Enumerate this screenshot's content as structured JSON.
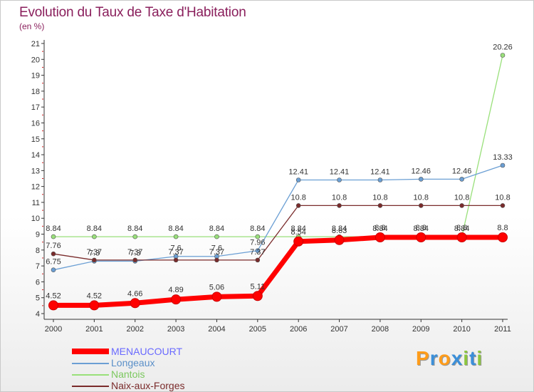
{
  "header": {
    "title": "Evolution du Taux de Taxe d'Habitation",
    "unit": "(en %)"
  },
  "chart_data": {
    "type": "line",
    "title": "Evolution du Taux de Taxe d'Habitation",
    "ylabel": "(en %)",
    "xlabel": "",
    "x": [
      "2000",
      "2001",
      "2002",
      "2003",
      "2004",
      "2005",
      "2006",
      "2007",
      "2008",
      "2009",
      "2010",
      "2011"
    ],
    "yticks": [
      "4",
      "5",
      "6",
      "7",
      "8",
      "9",
      "10",
      "11",
      "12",
      "13",
      "14",
      "15",
      "16",
      "17",
      "18",
      "19",
      "20",
      "21"
    ],
    "ylim": [
      4,
      21
    ],
    "grid": false,
    "legend_position": "bottom-left",
    "series": [
      {
        "name": "MENAUCOURT",
        "color": "#ff0000",
        "values": [
          4.52,
          4.52,
          4.66,
          4.89,
          5.06,
          5.11,
          8.54,
          8.63,
          8.8,
          8.8,
          8.8,
          8.8
        ],
        "labels": [
          "4.52",
          "4.52",
          "4.66",
          "4.89",
          "5.06",
          "5.11",
          "8.54",
          "8.63",
          "8.8",
          "8.8",
          "8.8",
          "8.8"
        ]
      },
      {
        "name": "Longeaux",
        "color": "#6b9fd4",
        "values": [
          6.75,
          7.3,
          7.3,
          7.6,
          7.6,
          7.96,
          12.41,
          12.41,
          12.41,
          12.46,
          12.46,
          13.33
        ],
        "labels": [
          "6.75",
          "7.3",
          "7.3",
          "7.6",
          "7.6",
          "7.96",
          "12.41",
          "12.41",
          "12.41",
          "12.46",
          "12.46",
          "13.33"
        ]
      },
      {
        "name": "Nantois",
        "color": "#99e07a",
        "values": [
          8.84,
          8.84,
          8.84,
          8.84,
          8.84,
          8.84,
          8.84,
          8.84,
          8.84,
          8.84,
          8.84,
          20.26
        ],
        "labels": [
          "8.84",
          "8.84",
          "8.84",
          "8.84",
          "8.84",
          "8.84",
          "8.84",
          "8.84",
          "8.84",
          "8.84",
          "8.84",
          "20.26"
        ]
      },
      {
        "name": "Naix-aux-Forges",
        "color": "#7a2b2b",
        "values": [
          7.76,
          7.37,
          7.37,
          7.37,
          7.37,
          7.37,
          10.8,
          10.8,
          10.8,
          10.8,
          10.8,
          10.8
        ],
        "labels": [
          "7.76",
          "7.37",
          "7.37",
          "7.37",
          "7.37",
          "7.37",
          "10.8",
          "10.8",
          "10.8",
          "10.8",
          "10.8",
          "10.8"
        ]
      }
    ]
  },
  "legend": {
    "items": [
      {
        "label": "MENAUCOURT",
        "color": "#ff0000"
      },
      {
        "label": "Longeaux",
        "color": "#6b9fd4"
      },
      {
        "label": "Nantois",
        "color": "#99e07a"
      },
      {
        "label": "Naix-aux-Forges",
        "color": "#7a2b2b"
      }
    ]
  },
  "logo": {
    "letters": [
      "P",
      "r",
      "o",
      "x",
      "i",
      "t",
      "i"
    ],
    "colors": [
      "#ff9c1a",
      "#3b8fd9",
      "#ff9c1a",
      "#3b8fd9",
      "#8cc63f",
      "#3b8fd9",
      "#8cc63f"
    ]
  }
}
